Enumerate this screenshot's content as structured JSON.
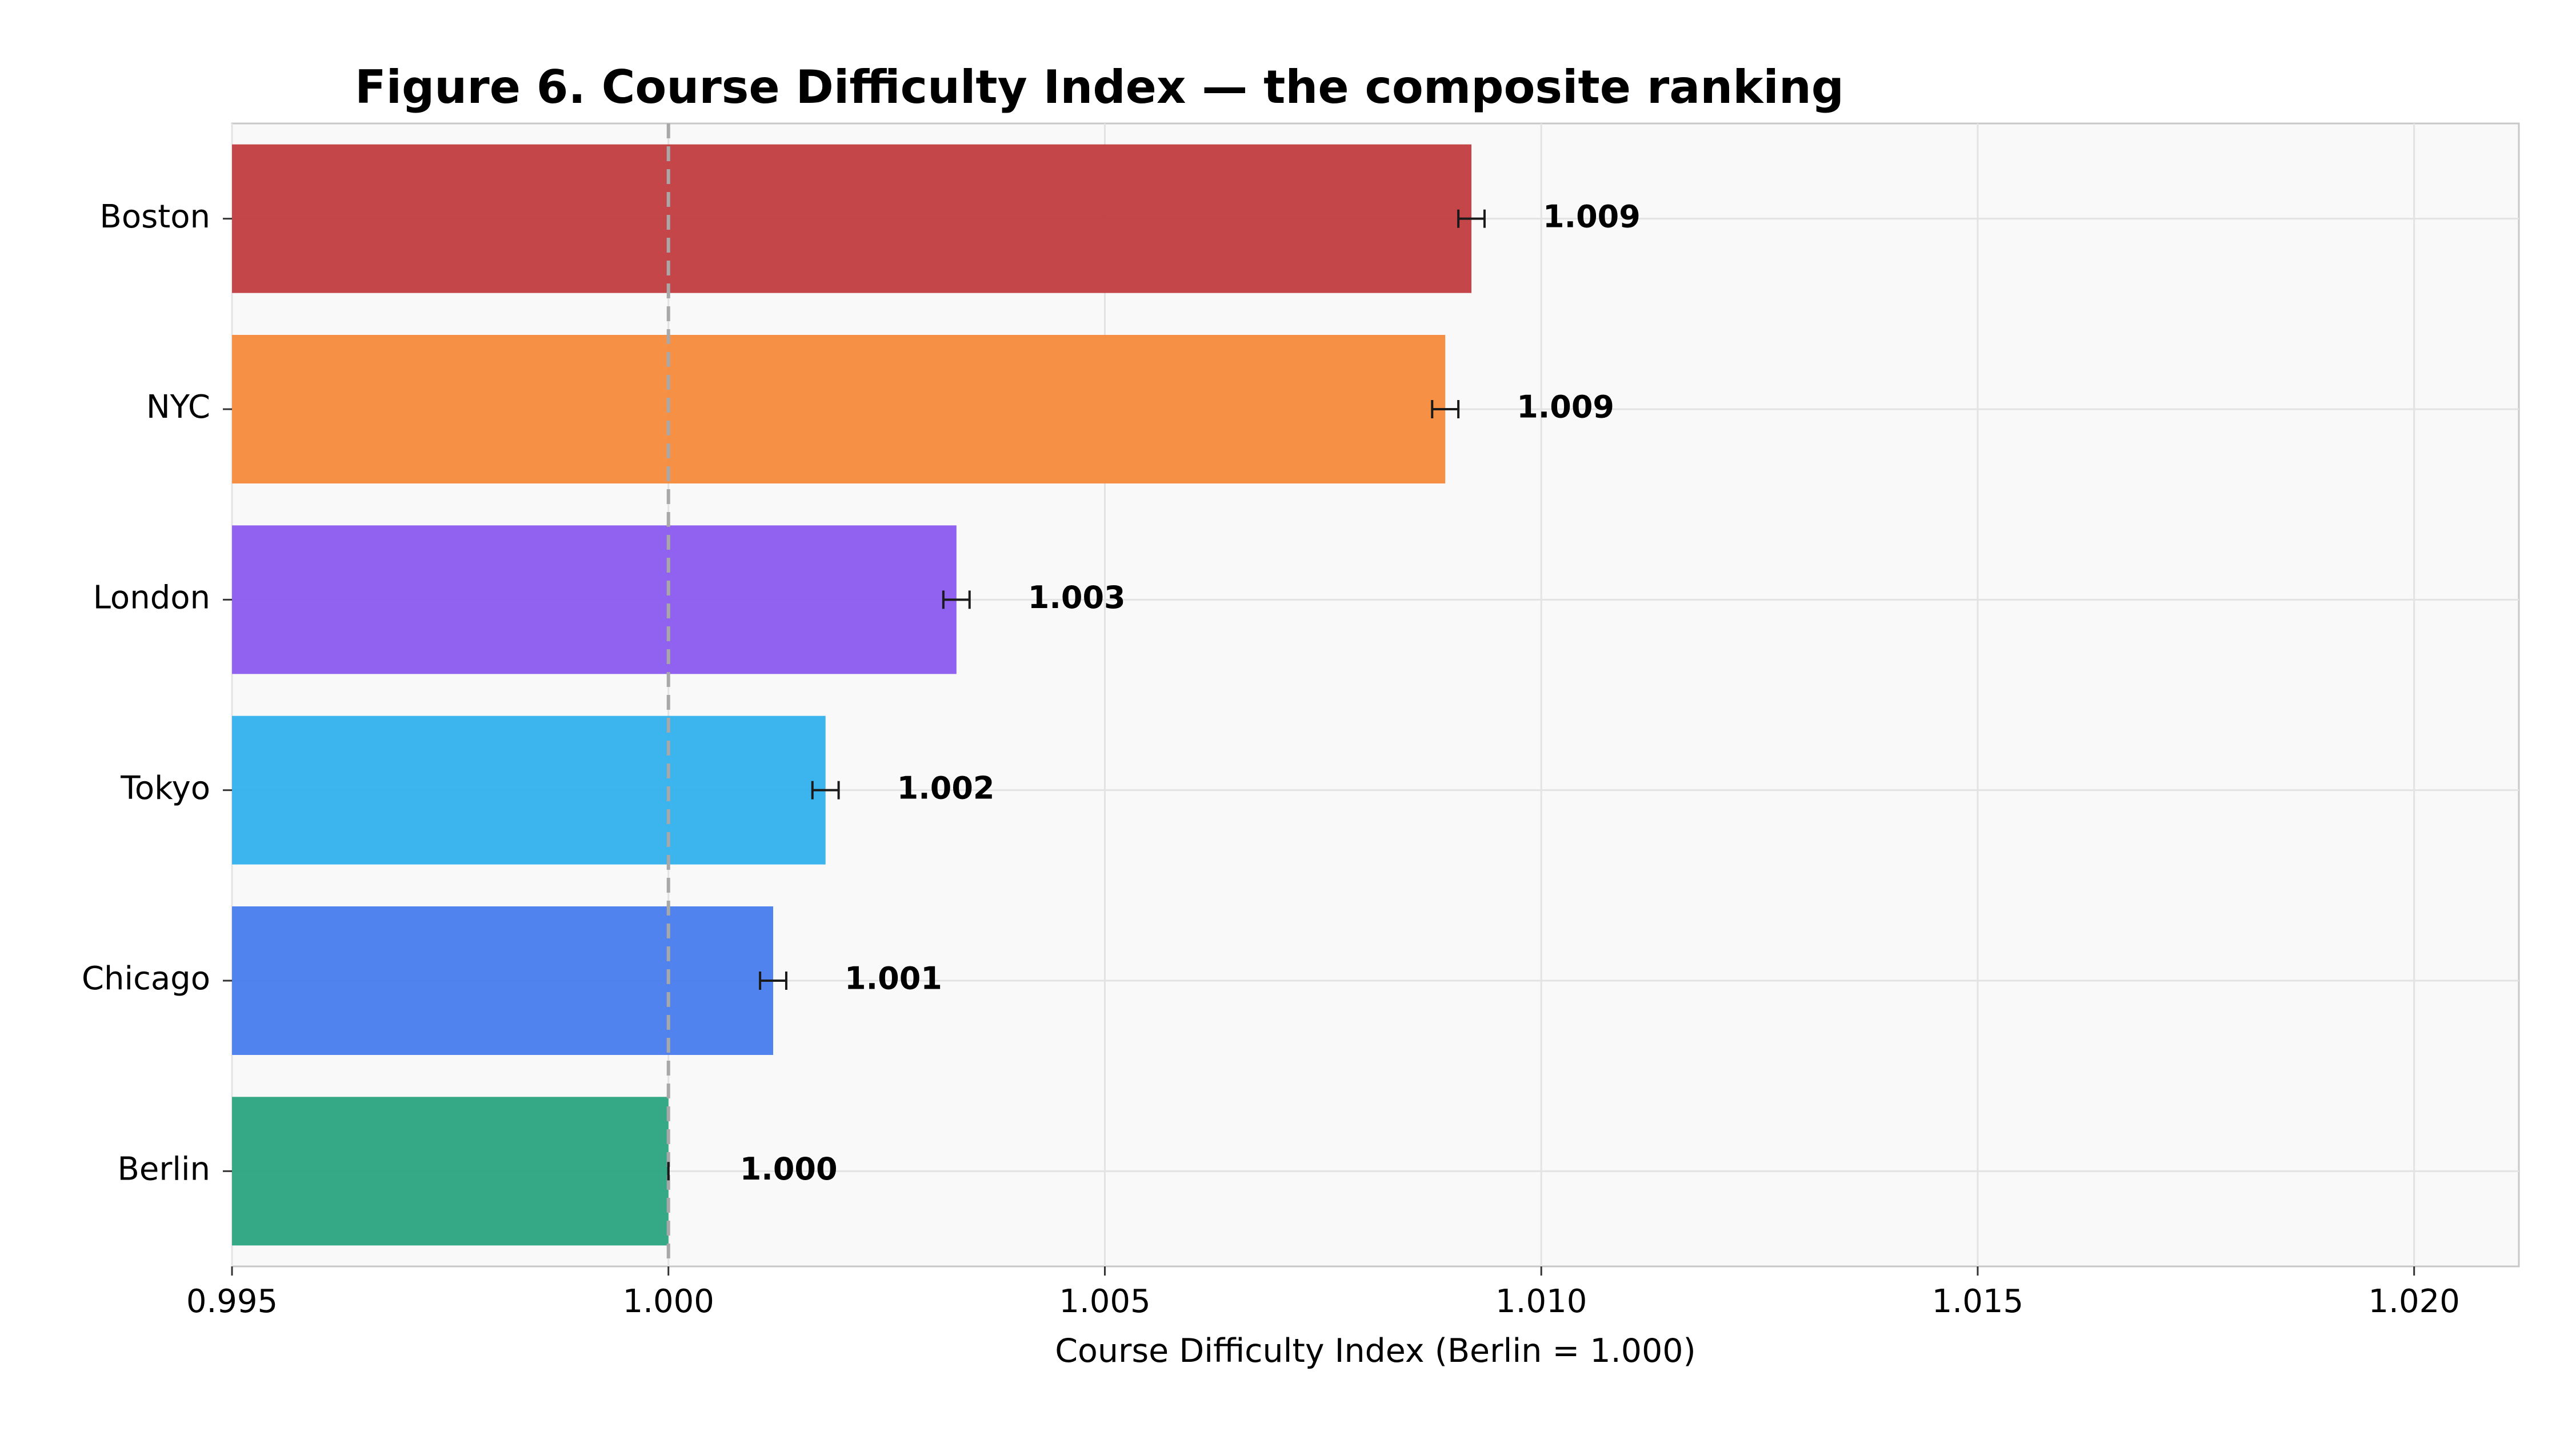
{
  "chart_data": {
    "type": "bar",
    "orientation": "horizontal",
    "title": "Figure 6. Course Difficulty Index — the composite ranking",
    "xlabel": "Course Difficulty Index (Berlin = 1.000)",
    "ylabel": "",
    "xlim": [
      0.995,
      1.0212
    ],
    "xticks": [
      "0.995",
      "1.000",
      "1.005",
      "1.010",
      "1.015",
      "1.020"
    ],
    "grid": true,
    "reference_line": 1.0,
    "categories": [
      "Boston",
      "NYC",
      "London",
      "Tokyo",
      "Chicago",
      "Berlin"
    ],
    "values": [
      1.0092,
      1.0089,
      1.0033,
      1.0018,
      1.0012,
      1.0
    ],
    "errors": [
      0.00015,
      0.00015,
      0.00015,
      0.00015,
      0.00015,
      0.0
    ],
    "value_labels": [
      "1.009",
      "1.009",
      "1.003",
      "1.002",
      "1.001",
      "1.000"
    ],
    "colors": [
      "#c23c3f",
      "#f68a3a",
      "#8b5aee",
      "#31b0ec",
      "#477ced",
      "#2aa37e"
    ]
  }
}
